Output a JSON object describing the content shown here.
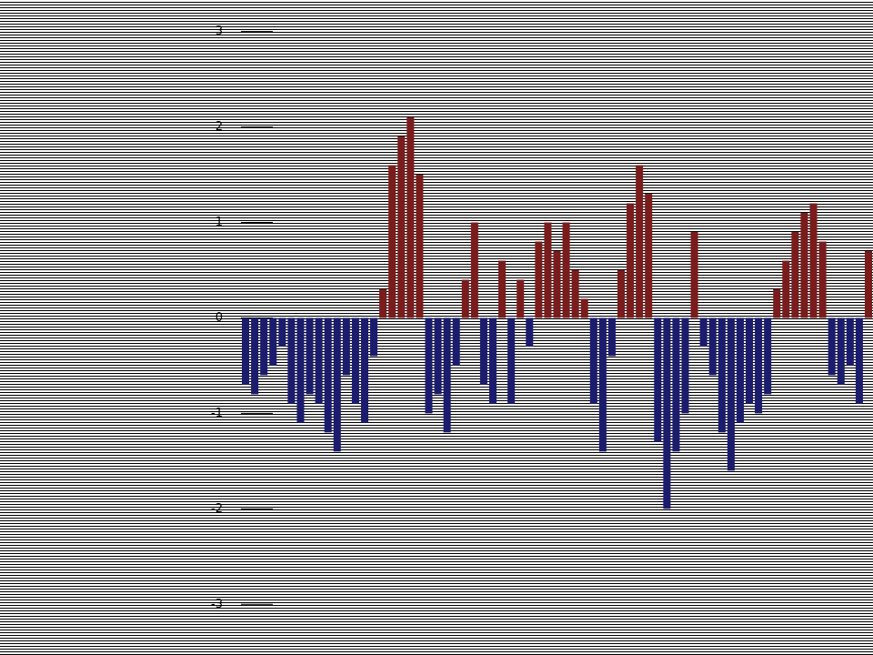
{
  "chart_data": {
    "type": "bar",
    "values": [
      -0.7,
      -0.8,
      -0.6,
      -0.5,
      -0.3,
      -0.9,
      -1.1,
      -0.8,
      -0.9,
      -1.2,
      -1.4,
      -0.6,
      -0.9,
      -1.1,
      -0.4,
      0.3,
      1.6,
      1.9,
      2.1,
      1.5,
      -1.0,
      -0.8,
      -1.2,
      -0.5,
      0.4,
      1.0,
      -0.7,
      -0.9,
      0.6,
      -0.9,
      0.4,
      -0.3,
      0.8,
      1.0,
      0.7,
      1.0,
      0.5,
      0.2,
      -0.9,
      -1.4,
      -0.4,
      0.5,
      1.2,
      1.6,
      1.3,
      -1.3,
      -2.0,
      -1.4,
      -1.0,
      0.9,
      -0.3,
      -0.6,
      -1.2,
      -1.6,
      -1.1,
      -0.9,
      -1.0,
      -0.8,
      0.3,
      0.6,
      0.9,
      1.1,
      1.2,
      0.8,
      -0.6,
      -0.7,
      -0.5,
      -0.9,
      0.7
    ],
    "positive_color": "#7a1c1c",
    "negative_color": "#1c1c6e",
    "ylim": [
      -3.15,
      3.33
    ],
    "yticks": [
      -3,
      -2,
      -1,
      0,
      1,
      2,
      3
    ]
  }
}
